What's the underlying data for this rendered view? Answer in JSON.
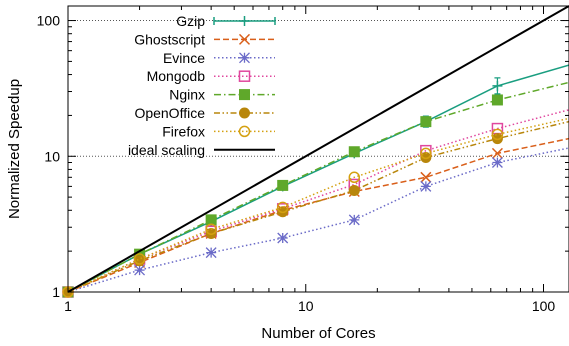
{
  "chart_data": {
    "type": "line",
    "title": "",
    "xlabel": "Number of Cores",
    "ylabel": "Normalized Speedup",
    "xscale": "log",
    "yscale": "log",
    "xlim": [
      1,
      128
    ],
    "ylim": [
      1,
      128
    ],
    "xticks": [
      1,
      10,
      100
    ],
    "xtick_labels": [
      "1",
      "10",
      "100"
    ],
    "yticks": [
      1,
      10,
      100
    ],
    "ytick_labels": [
      "1",
      "10",
      "100"
    ],
    "grid": "dotted horizontal lines at 10 and 100",
    "legend": "top-left, inside plot area",
    "series": [
      {
        "name": "Gzip",
        "color": "#1a9e80",
        "dash": "solid",
        "marker": "plus-errorbar",
        "x": [
          1,
          2,
          4,
          8,
          16,
          32,
          64,
          128
        ],
        "y": [
          1,
          1.9,
          3.3,
          6.0,
          10.5,
          18.0,
          33.0,
          47.0
        ]
      },
      {
        "name": "Ghostscript",
        "color": "#d95f1a",
        "dash": "dashed",
        "marker": "x",
        "x": [
          1,
          2,
          4,
          8,
          16,
          32,
          64,
          128
        ],
        "y": [
          1,
          1.65,
          2.7,
          4.0,
          5.5,
          7.0,
          10.5,
          13.5
        ]
      },
      {
        "name": "Evince",
        "color": "#6b6bc8",
        "dash": "dotted",
        "marker": "asterisk",
        "x": [
          1,
          2,
          4,
          8,
          16,
          32,
          64,
          128
        ],
        "y": [
          1,
          1.45,
          1.95,
          2.5,
          3.4,
          6.0,
          9.0,
          11.5
        ]
      },
      {
        "name": "Mongodb",
        "color": "#e0479e",
        "dash": "dotted",
        "marker": "open-square",
        "x": [
          1,
          2,
          4,
          8,
          16,
          32,
          64,
          128
        ],
        "y": [
          1,
          1.75,
          2.8,
          4.1,
          6.2,
          11.0,
          16.0,
          22.0
        ]
      },
      {
        "name": "Nginx",
        "color": "#5fa82a",
        "dash": "dashdot",
        "marker": "filled-square",
        "x": [
          1,
          2,
          4,
          8,
          16,
          32,
          64,
          128
        ],
        "y": [
          1,
          1.9,
          3.4,
          6.1,
          10.8,
          18.0,
          26.0,
          35.0
        ]
      },
      {
        "name": "OpenOffice",
        "color": "#b8860b",
        "dash": "dashdotdot",
        "marker": "filled-circle",
        "x": [
          1,
          2,
          4,
          8,
          16,
          32,
          64,
          128
        ],
        "y": [
          1,
          1.7,
          2.7,
          3.9,
          5.6,
          9.8,
          13.5,
          18.0
        ]
      },
      {
        "name": "Firefox",
        "color": "#d4a010",
        "dash": "dotted",
        "marker": "open-circle",
        "x": [
          1,
          2,
          4,
          8,
          16,
          32,
          64,
          128
        ],
        "y": [
          1,
          1.75,
          2.9,
          4.2,
          7.0,
          10.5,
          14.5,
          19.0
        ]
      },
      {
        "name": "ideal scaling",
        "color": "#000000",
        "dash": "solid",
        "marker": "none",
        "x": [
          1,
          128
        ],
        "y": [
          1,
          128
        ]
      }
    ]
  }
}
